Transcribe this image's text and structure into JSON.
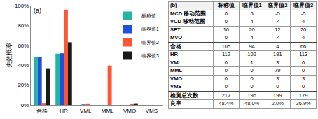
{
  "chart_data": {
    "type": "bar",
    "annotations": [
      "(a)"
    ],
    "y_label": "失效概率",
    "categories": [
      "合格",
      "HR",
      "VML",
      "MML",
      "VMO",
      "VMS"
    ],
    "series": [
      {
        "name": "标称值",
        "color": "#22b5a0",
        "values": [
          48.4,
          51.6,
          0,
          0,
          0,
          0
        ]
      },
      {
        "name": "临界值1",
        "color": "#1f4fe0",
        "values": [
          48.0,
          52.0,
          0.5,
          0,
          0,
          0
        ]
      },
      {
        "name": "临界值2",
        "color": "#ff5533",
        "values": [
          2.0,
          96.0,
          1.5,
          39.7,
          1.5,
          0
        ]
      },
      {
        "name": "临界值3",
        "color": "#1a1a1a",
        "values": [
          36.9,
          63.1,
          0,
          0,
          1.7,
          0
        ]
      }
    ],
    "ylim": [
      0,
      100
    ],
    "yticks": [
      {
        "value": 0,
        "label": "0%"
      },
      {
        "value": 20,
        "label": "20%"
      },
      {
        "value": 40,
        "label": "40%"
      },
      {
        "value": 60,
        "label": "60%"
      },
      {
        "value": 80,
        "label": "80%"
      },
      {
        "value": 100,
        "label": "100%"
      }
    ],
    "grid": false,
    "legend": "top right"
  },
  "table": {
    "label": "(b)",
    "header": [
      "标称值",
      "临界值1",
      "临界值2",
      "临界值3"
    ],
    "sections": [
      [
        [
          "MCD 移动范围",
          "0",
          "5",
          "-5",
          "-5"
        ],
        [
          "VCD 移动范围",
          "0",
          "4",
          "-4",
          "4"
        ],
        [
          "SPT",
          "16",
          "20",
          "12",
          "20"
        ],
        [
          "MVO",
          "0",
          "4",
          "-4",
          "4"
        ]
      ],
      [
        [
          "合格",
          "105",
          "94",
          "4",
          "66"
        ],
        [
          "HR",
          "112",
          "102",
          "191",
          "113"
        ],
        [
          "VML",
          "0",
          "1",
          "3",
          "0"
        ],
        [
          "MML",
          "0",
          "0",
          "79",
          "0"
        ],
        [
          "VMO",
          "0",
          "0",
          "3",
          "3"
        ],
        [
          "VMS",
          "0",
          "0",
          "0",
          "0"
        ]
      ],
      [
        [
          "检测总次数",
          "217",
          "196",
          "199",
          "179"
        ],
        [
          "良率",
          "48.4%",
          "48.0%",
          "2.0%",
          "36.9%"
        ]
      ]
    ]
  }
}
